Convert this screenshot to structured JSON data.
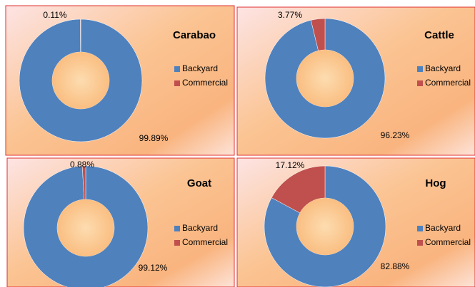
{
  "chart_data": [
    {
      "type": "doughnut",
      "title": "Carabao",
      "categories": [
        "Backyard",
        "Commercial"
      ],
      "values": [
        99.89,
        0.11
      ],
      "value_labels": [
        "99.89%",
        "0.11%"
      ],
      "colors": [
        "#4f81bd",
        "#c0504d"
      ]
    },
    {
      "type": "doughnut",
      "title": "Cattle",
      "categories": [
        "Backyard",
        "Commercial"
      ],
      "values": [
        96.23,
        3.77
      ],
      "value_labels": [
        "96.23%",
        "3.77%"
      ],
      "colors": [
        "#4f81bd",
        "#c0504d"
      ]
    },
    {
      "type": "doughnut",
      "title": "Goat",
      "categories": [
        "Backyard",
        "Commercial"
      ],
      "values": [
        99.12,
        0.88
      ],
      "value_labels": [
        "99.12%",
        "0.88%"
      ],
      "colors": [
        "#4f81bd",
        "#c0504d"
      ]
    },
    {
      "type": "doughnut",
      "title": "Hog",
      "categories": [
        "Backyard",
        "Commercial"
      ],
      "values": [
        82.88,
        17.12
      ],
      "value_labels": [
        "82.88%",
        "17.12%"
      ],
      "colors": [
        "#4f81bd",
        "#c0504d"
      ]
    }
  ]
}
